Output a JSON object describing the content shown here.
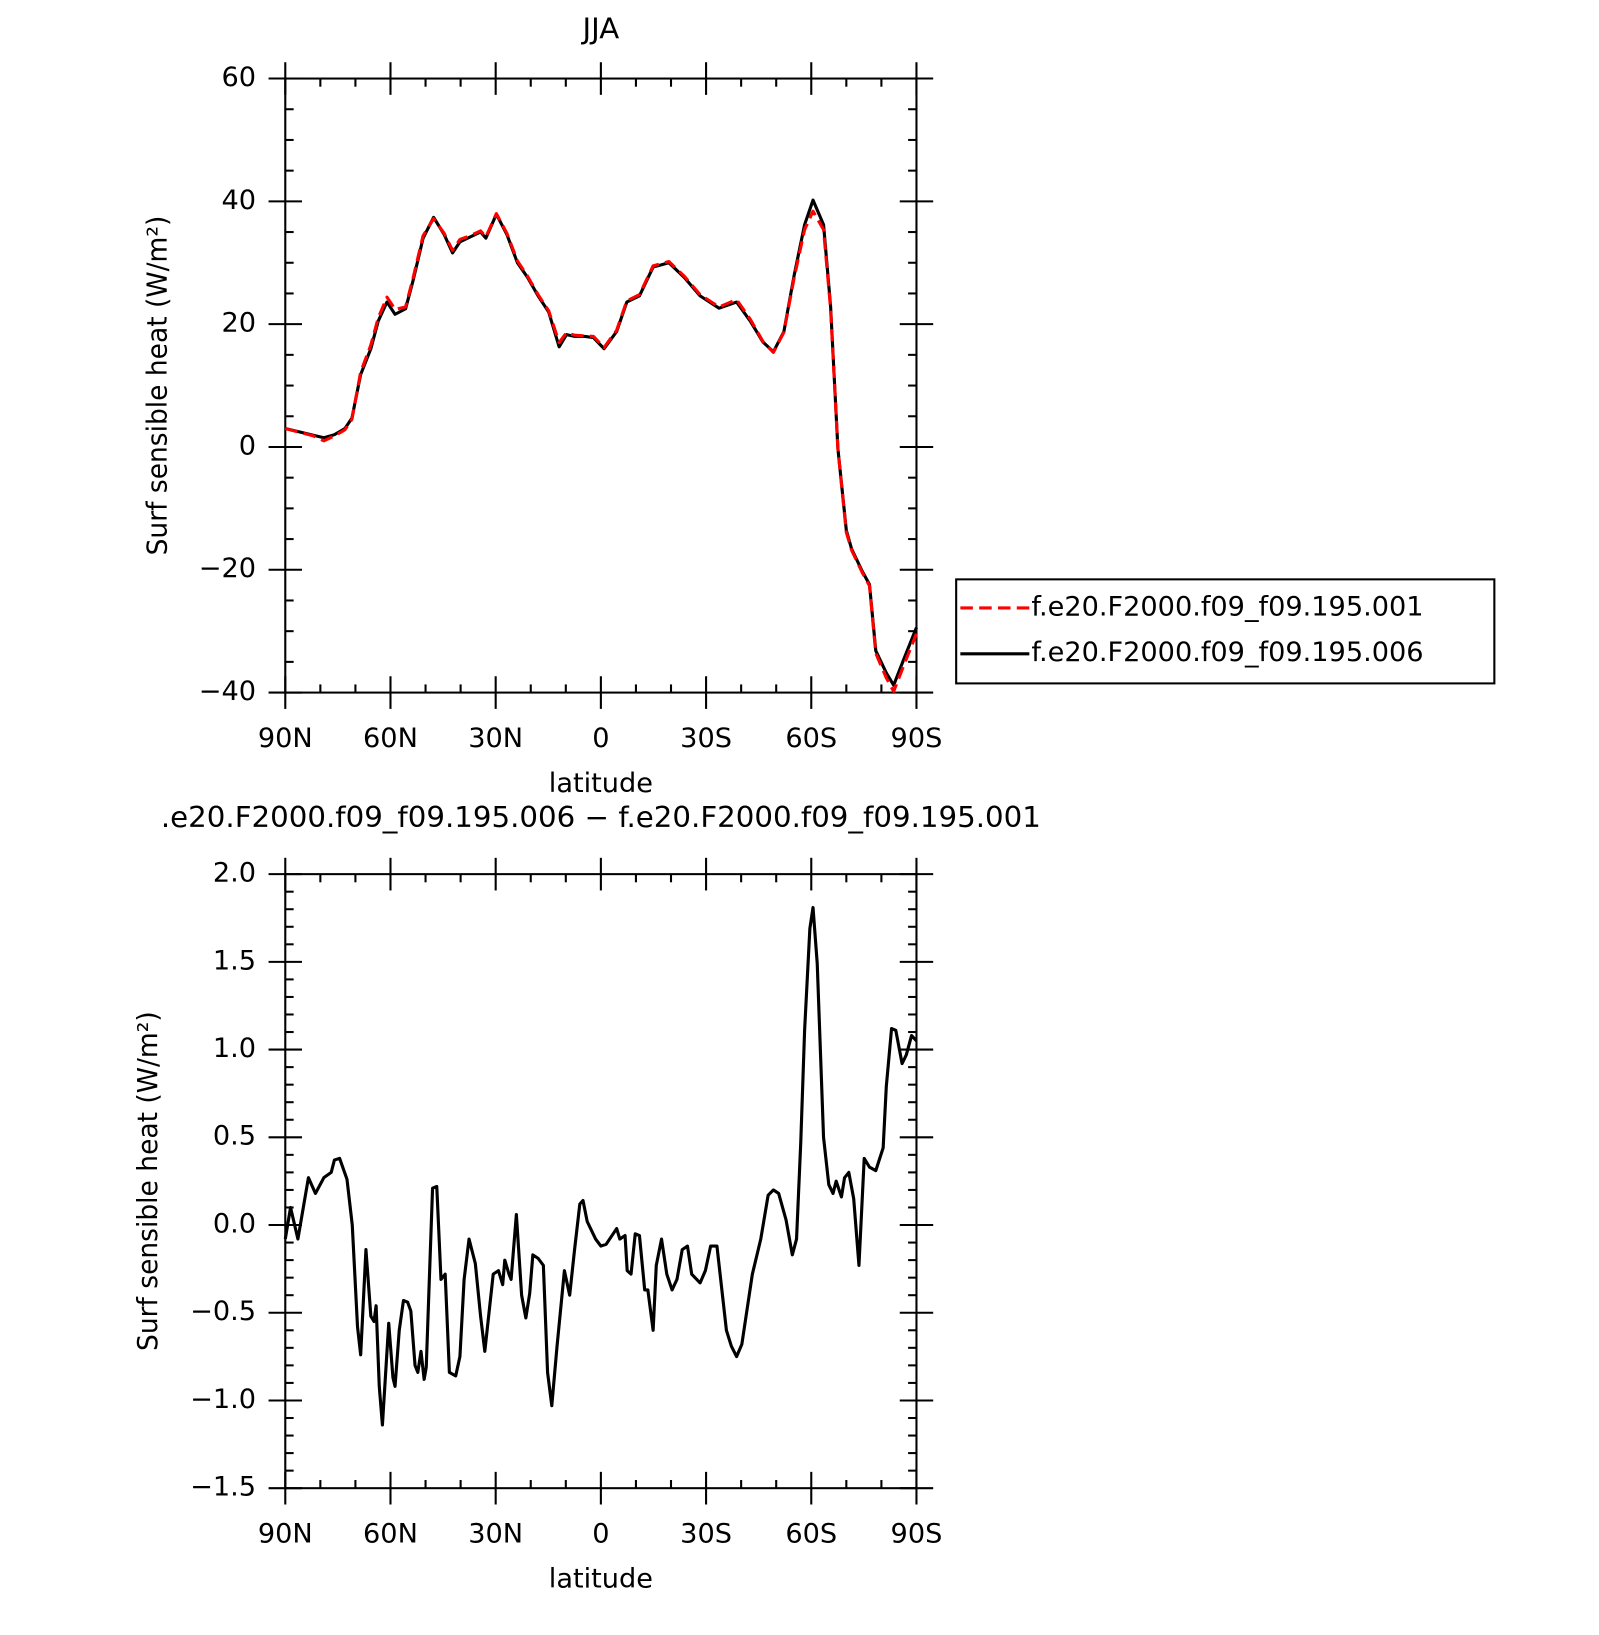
{
  "chart_data": [
    {
      "type": "line",
      "title": "JJA",
      "xlabel": "latitude",
      "ylabel": "Surf sensible heat (W/m²)",
      "x": [
        90,
        82,
        79,
        76,
        73,
        71,
        68.5,
        65.6,
        63.5,
        61,
        58.7,
        55.7,
        53.6,
        50.7,
        47.7,
        44.7,
        42.3,
        40.2,
        37.3,
        34.3,
        32.8,
        29.8,
        26.8,
        23.8,
        20.9,
        17.9,
        14.9,
        11.9,
        9.8,
        7.5,
        4.5,
        2.1,
        -0.9,
        -4.5,
        -7.4,
        -11,
        -14.9,
        -19.4,
        -23.8,
        -28.3,
        -33.7,
        -38.7,
        -42.6,
        -46.2,
        -49.2,
        -52.2,
        -55.1,
        -58.1,
        -60.5,
        -63.5,
        -65.5,
        -67.6,
        -70,
        -71.5,
        -74.5,
        -76.6,
        -78.4,
        -81.4,
        -83.5,
        -86.5,
        -90
      ],
      "series": [
        {
          "name": "f.e20.F2000.f09_f09.195.001",
          "color": "#ff0000",
          "dashed": true,
          "values": [
            3.0,
            1.8,
            1.0,
            1.8,
            2.8,
            4.5,
            12.2,
            16.6,
            21,
            24.4,
            22.4,
            22.8,
            27.4,
            34.4,
            37.2,
            34.8,
            32.0,
            33.8,
            34.4,
            35.2,
            34.2,
            38.0,
            34.8,
            30.3,
            27.8,
            24.8,
            22.2,
            17.0,
            18.6,
            18.2,
            18.1,
            18.0,
            16.2,
            19.0,
            23.8,
            24.8,
            29.5,
            30.2,
            27.8,
            24.8,
            22.8,
            24.0,
            20.8,
            17.2,
            15.4,
            18.7,
            27.5,
            35.4,
            38.4,
            35.4,
            22.6,
            -0.4,
            -13.9,
            -16.8,
            -20.4,
            -22.6,
            -33.6,
            -37.6,
            -39.8,
            -35.4,
            -30.4
          ]
        },
        {
          "name": "f.e20.F2000.f09_f09.195.006",
          "color": "#000000",
          "dashed": false,
          "values": [
            3.0,
            1.9,
            1.5,
            2.0,
            3.0,
            4.7,
            11.8,
            16,
            20.5,
            23.6,
            21.6,
            22.5,
            27,
            34,
            37.4,
            34.6,
            31.6,
            33.4,
            34.2,
            35,
            34,
            37.9,
            34.6,
            30,
            27.6,
            24.6,
            22,
            16.3,
            18.3,
            18,
            18,
            17.8,
            16,
            18.8,
            23.6,
            24.6,
            29.3,
            30,
            27.6,
            24.6,
            22.6,
            23.6,
            20.5,
            17.1,
            15.5,
            18.8,
            27.9,
            36.2,
            40.2,
            36.2,
            23,
            -0.3,
            -13.6,
            -16.6,
            -20.2,
            -22.4,
            -33.2,
            -36.8,
            -38.8,
            -34.4,
            -29.4
          ]
        }
      ],
      "xlim": [
        90,
        -90
      ],
      "xticks": [
        {
          "value": 90,
          "label": "90N"
        },
        {
          "value": 60,
          "label": "60N"
        },
        {
          "value": 30,
          "label": "30N"
        },
        0,
        {
          "value": -30,
          "label": "30S"
        },
        {
          "value": -60,
          "label": "60S"
        },
        {
          "value": -90,
          "label": "90S"
        }
      ],
      "xminorticks": [
        80,
        70,
        50,
        40,
        20,
        10,
        -10,
        -20,
        -40,
        -50,
        -70,
        -80
      ],
      "ylim": [
        -40,
        60
      ],
      "yticks": [
        60,
        40,
        20,
        0,
        {
          "value": -20,
          "label": "−20"
        },
        {
          "value": -40,
          "label": "−40"
        }
      ],
      "yminorticks": [
        55,
        50,
        45,
        35,
        30,
        25,
        15,
        10,
        5,
        -5,
        -10,
        -15,
        -25,
        -30,
        -35
      ],
      "legend": "right"
    },
    {
      "type": "line",
      "title": ".e20.F2000.f09_f09.195.006 − f.e20.F2000.f09_f09.195.001",
      "xlabel": "latitude",
      "ylabel": "Surf sensible heat (W/m²)",
      "x": [
        90,
        88.5,
        86.4,
        83.4,
        81.4,
        79,
        76.9,
        76,
        74.5,
        72.4,
        70.9,
        69.4,
        68.5,
        67,
        65.6,
        64.7,
        64.1,
        63.2,
        62.3,
        60.5,
        59.3,
        58.7,
        57.5,
        56.3,
        55.1,
        54.2,
        53,
        52.2,
        51.3,
        50.4,
        49.8,
        48,
        46.8,
        45.6,
        44.4,
        43.2,
        41.4,
        40.2,
        39,
        37.6,
        35.8,
        34.3,
        33.1,
        30.7,
        29.2,
        28,
        27.4,
        26.2,
        25.6,
        24.1,
        22.6,
        21.4,
        20.3,
        19.4,
        17.9,
        16.4,
        15.2,
        14,
        12.5,
        10.4,
        8.9,
        7.5,
        6,
        5.1,
        3.9,
        1.5,
        0,
        -1.5,
        -4.5,
        -5.4,
        -6.9,
        -7.5,
        -8.6,
        -9.8,
        -11,
        -12.5,
        -13.4,
        -14.9,
        -15.8,
        -17.3,
        -18.8,
        -20.3,
        -21.7,
        -23.2,
        -24.7,
        -25.9,
        -28.3,
        -29.8,
        -31.3,
        -33.1,
        -35.8,
        -37.2,
        -38.7,
        -40.2,
        -43.2,
        -45.6,
        -47.7,
        -49.2,
        -50.7,
        -52.8,
        -54.6,
        -55.8,
        -57,
        -58.1,
        -59.6,
        -60.5,
        -61.7,
        -63.5,
        -65,
        -66.2,
        -67.1,
        -68.6,
        -69.5,
        -70.7,
        -72.1,
        -73.6,
        -75.1,
        -76.6,
        -78.4,
        -80.5,
        -81.4,
        -82.9,
        -84.1,
        -85.9,
        -87.1,
        -88.6,
        -90
      ],
      "color": "#000000",
      "values": [
        -0.08,
        0.1,
        -0.08,
        0.27,
        0.18,
        0.27,
        0.3,
        0.37,
        0.38,
        0.26,
        0.0,
        -0.58,
        -0.74,
        -0.14,
        -0.52,
        -0.55,
        -0.46,
        -0.92,
        -1.14,
        -0.56,
        -0.87,
        -0.92,
        -0.6,
        -0.43,
        -0.44,
        -0.49,
        -0.8,
        -0.84,
        -0.72,
        -0.88,
        -0.81,
        0.21,
        0.22,
        -0.31,
        -0.28,
        -0.84,
        -0.86,
        -0.75,
        -0.31,
        -0.08,
        -0.22,
        -0.52,
        -0.72,
        -0.28,
        -0.26,
        -0.34,
        -0.2,
        -0.28,
        -0.31,
        0.06,
        -0.4,
        -0.53,
        -0.39,
        -0.17,
        -0.19,
        -0.23,
        -0.84,
        -1.03,
        -0.69,
        -0.26,
        -0.4,
        -0.14,
        0.12,
        0.14,
        0.02,
        -0.08,
        -0.12,
        -0.11,
        -0.02,
        -0.08,
        -0.06,
        -0.26,
        -0.28,
        -0.05,
        -0.06,
        -0.37,
        -0.37,
        -0.6,
        -0.23,
        -0.08,
        -0.28,
        -0.37,
        -0.31,
        -0.14,
        -0.12,
        -0.28,
        -0.33,
        -0.26,
        -0.12,
        -0.12,
        -0.6,
        -0.69,
        -0.75,
        -0.68,
        -0.28,
        -0.08,
        0.17,
        0.2,
        0.18,
        0.03,
        -0.17,
        -0.08,
        0.47,
        1.11,
        1.69,
        1.81,
        1.49,
        0.5,
        0.23,
        0.18,
        0.25,
        0.16,
        0.27,
        0.3,
        0.15,
        -0.23,
        0.38,
        0.33,
        0.31,
        0.44,
        0.79,
        1.12,
        1.11,
        0.92,
        0.97,
        1.08,
        1.05
      ],
      "xlim": [
        90,
        -90
      ],
      "xticks": [
        {
          "value": 90,
          "label": "90N"
        },
        {
          "value": 60,
          "label": "60N"
        },
        {
          "value": 30,
          "label": "30N"
        },
        0,
        {
          "value": -30,
          "label": "30S"
        },
        {
          "value": -60,
          "label": "60S"
        },
        {
          "value": -90,
          "label": "90S"
        }
      ],
      "xminorticks": [
        80,
        70,
        50,
        40,
        20,
        10,
        -10,
        -20,
        -40,
        -50,
        -70,
        -80
      ],
      "ylim": [
        -1.5,
        2
      ],
      "yticks": [
        {
          "value": 2,
          "label": "2.0"
        },
        1.5,
        {
          "value": 1,
          "label": "1.0"
        },
        0.5,
        {
          "value": 0,
          "label": "0.0"
        },
        {
          "value": -0.5,
          "label": "−0.5"
        },
        {
          "value": -1,
          "label": "−1.0"
        },
        {
          "value": -1.5,
          "label": "−1.5"
        }
      ],
      "yminorticks": [
        1.9,
        1.8,
        1.7,
        1.6,
        1.4,
        1.3,
        1.2,
        1.1,
        0.9,
        0.8,
        0.7,
        0.6,
        0.4,
        0.3,
        0.2,
        0.1,
        -0.1,
        -0.2,
        -0.3,
        -0.4,
        -0.6,
        -0.7,
        -0.8,
        -0.9,
        -1.1,
        -1.2,
        -1.3,
        -1.4
      ]
    }
  ]
}
